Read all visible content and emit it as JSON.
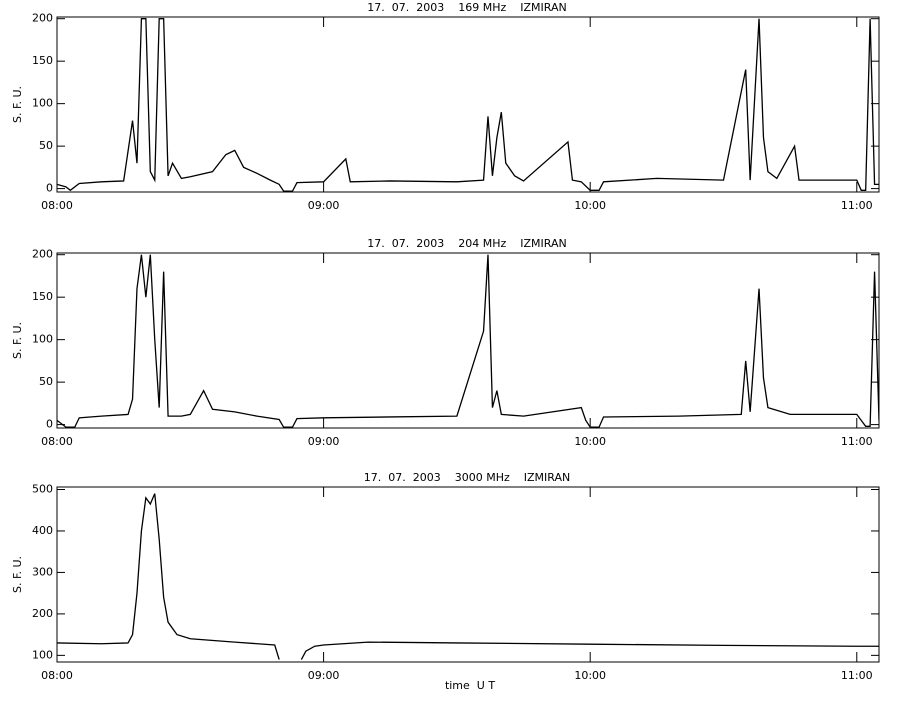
{
  "chart_data": [
    {
      "type": "line",
      "title": "17.  07.  2003    169 MHz    IZMIRAN",
      "ylabel": "S. F. U.",
      "x": [
        "08:00",
        "08:02",
        "08:03",
        "08:05",
        "08:10",
        "08:15",
        "08:17",
        "08:18",
        "08:19",
        "08:20",
        "08:21",
        "08:22",
        "08:23",
        "08:24",
        "08:25",
        "08:26",
        "08:28",
        "08:30",
        "08:35",
        "08:38",
        "08:40",
        "08:42",
        "08:45",
        "08:48",
        "08:50",
        "08:51",
        "08:53",
        "08:54",
        "09:00",
        "09:05",
        "09:06",
        "09:15",
        "09:30",
        "09:36",
        "09:37",
        "09:38",
        "09:39",
        "09:40",
        "09:41",
        "09:43",
        "09:45",
        "09:55",
        "09:56",
        "09:58",
        "10:00",
        "10:02",
        "10:03",
        "10:15",
        "10:30",
        "10:35",
        "10:36",
        "10:38",
        "10:39",
        "10:40",
        "10:42",
        "10:46",
        "10:47",
        "11:00",
        "11:01",
        "11:02",
        "11:03",
        "11:04",
        "11:05"
      ],
      "series": [
        {
          "color": "#000000",
          "values": [
            5,
            2,
            -2,
            6,
            8,
            9,
            80,
            30,
            200,
            200,
            20,
            10,
            200,
            200,
            15,
            30,
            12,
            14,
            20,
            40,
            45,
            25,
            18,
            10,
            5,
            -3,
            -3,
            7,
            8,
            35,
            8,
            9,
            8,
            10,
            85,
            15,
            60,
            90,
            30,
            15,
            9,
            55,
            10,
            8,
            -2,
            -2,
            8,
            12,
            10,
            140,
            10,
            200,
            60,
            20,
            12,
            50,
            10,
            10,
            -2,
            -2,
            200,
            5,
            5
          ]
        }
      ],
      "xlim": [
        "08:00",
        "11:05"
      ],
      "xticks": [
        "08:00",
        "09:00",
        "10:00",
        "11:00"
      ],
      "ylim": [
        -4,
        202
      ],
      "yticks": [
        0,
        50,
        100,
        150,
        200
      ]
    },
    {
      "type": "line",
      "title": "17.  07.  2003    204 MHz    IZMIRAN",
      "ylabel": "S. F. U.",
      "x": [
        "08:00",
        "08:02",
        "08:04",
        "08:05",
        "08:10",
        "08:16",
        "08:17",
        "08:18",
        "08:19",
        "08:20",
        "08:21",
        "08:22",
        "08:23",
        "08:24",
        "08:25",
        "08:28",
        "08:30",
        "08:33",
        "08:35",
        "08:40",
        "08:45",
        "08:50",
        "08:51",
        "08:53",
        "08:54",
        "09:00",
        "09:15",
        "09:30",
        "09:36",
        "09:37",
        "09:38",
        "09:39",
        "09:40",
        "09:45",
        "09:58",
        "09:59",
        "10:00",
        "10:02",
        "10:03",
        "10:20",
        "10:34",
        "10:35",
        "10:36",
        "10:38",
        "10:39",
        "10:40",
        "10:45",
        "11:00",
        "11:01",
        "11:02",
        "11:03",
        "11:04",
        "11:05"
      ],
      "series": [
        {
          "color": "#000000",
          "values": [
            5,
            -3,
            -3,
            8,
            10,
            12,
            30,
            160,
            200,
            150,
            200,
            100,
            20,
            180,
            10,
            10,
            12,
            40,
            18,
            15,
            10,
            6,
            -3,
            -3,
            7,
            8,
            9,
            10,
            110,
            200,
            20,
            40,
            12,
            10,
            20,
            5,
            -3,
            -3,
            9,
            10,
            12,
            75,
            15,
            160,
            55,
            20,
            12,
            12,
            5,
            -2,
            -2,
            180,
            5
          ]
        }
      ],
      "xlim": [
        "08:00",
        "11:05"
      ],
      "xticks": [
        "08:00",
        "09:00",
        "10:00",
        "11:00"
      ],
      "ylim": [
        -4,
        202
      ],
      "yticks": [
        0,
        50,
        100,
        150,
        200
      ]
    },
    {
      "type": "line",
      "title": "17.  07.  2003    3000 MHz    IZMIRAN",
      "ylabel": "S. F. U.",
      "xlabel": "time  U T",
      "x": [
        "08:00",
        "08:10",
        "08:16",
        "08:17",
        "08:18",
        "08:19",
        "08:20",
        "08:21",
        "08:22",
        "08:23",
        "08:24",
        "08:25",
        "08:27",
        "08:30",
        "08:40",
        "08:49",
        "08:50",
        "08:52",
        "08:55",
        "08:56",
        "08:58",
        "09:00",
        "09:10",
        "09:30",
        "10:00",
        "10:30",
        "11:00",
        "11:05"
      ],
      "series": [
        {
          "color": "#000000",
          "values": [
            130,
            128,
            130,
            150,
            250,
            400,
            480,
            465,
            490,
            380,
            240,
            180,
            150,
            140,
            132,
            125,
            90,
            null,
            90,
            110,
            122,
            125,
            132,
            130,
            127,
            124,
            122,
            122
          ]
        }
      ],
      "xlim": [
        "08:00",
        "11:05"
      ],
      "xticks": [
        "08:00",
        "09:00",
        "10:00",
        "11:00"
      ],
      "ylim": [
        84,
        506
      ],
      "yticks": [
        100,
        200,
        300,
        400,
        500
      ]
    }
  ]
}
